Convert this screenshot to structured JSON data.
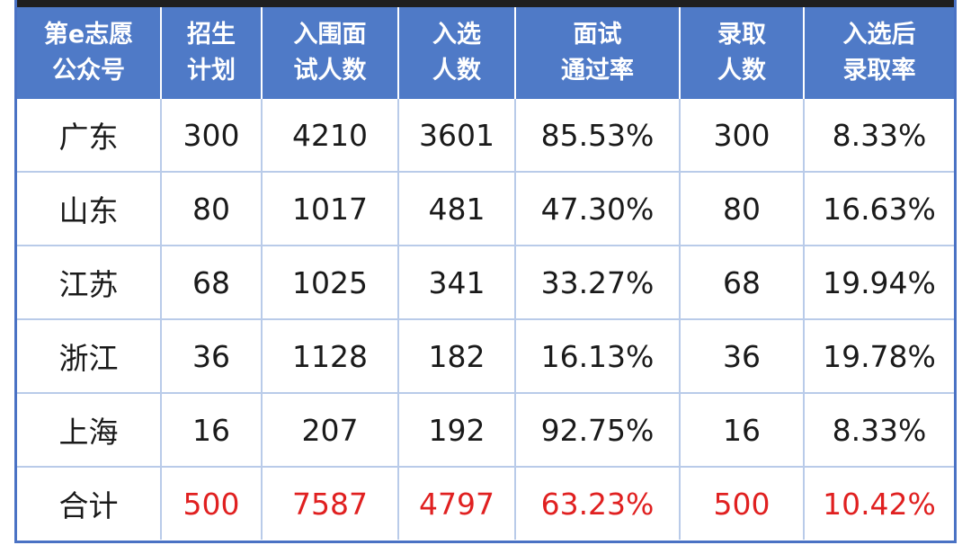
{
  "header": {
    "region": [
      "第e志愿",
      "公众号"
    ],
    "plan": [
      "招生",
      "计划"
    ],
    "interview": [
      "入围面",
      "试人数"
    ],
    "selected": [
      "入选",
      "人数"
    ],
    "pass_rate": [
      "面试",
      "通过率"
    ],
    "admitted": [
      "录取",
      "人数"
    ],
    "admit_rate": [
      "入选后",
      "录取率"
    ]
  },
  "rows": [
    {
      "region": "广东",
      "plan": "300",
      "interview": "4210",
      "selected": "3601",
      "pass_rate": "85.53%",
      "admitted": "300",
      "admit_rate": "8.33%"
    },
    {
      "region": "山东",
      "plan": "80",
      "interview": "1017",
      "selected": "481",
      "pass_rate": "47.30%",
      "admitted": "80",
      "admit_rate": "16.63%"
    },
    {
      "region": "江苏",
      "plan": "68",
      "interview": "1025",
      "selected": "341",
      "pass_rate": "33.27%",
      "admitted": "68",
      "admit_rate": "19.94%"
    },
    {
      "region": "浙江",
      "plan": "36",
      "interview": "1128",
      "selected": "182",
      "pass_rate": "16.13%",
      "admitted": "36",
      "admit_rate": "19.78%"
    },
    {
      "region": "上海",
      "plan": "16",
      "interview": "207",
      "selected": "192",
      "pass_rate": "92.75%",
      "admitted": "16",
      "admit_rate": "8.33%"
    }
  ],
  "total": {
    "region": "合计",
    "plan": "500",
    "interview": "7587",
    "selected": "4797",
    "pass_rate": "63.23%",
    "admitted": "500",
    "admit_rate": "10.42%"
  },
  "colors": {
    "header_bg": "#4f7ac7",
    "border": "#4a72c4",
    "total_value": "#e02020"
  }
}
